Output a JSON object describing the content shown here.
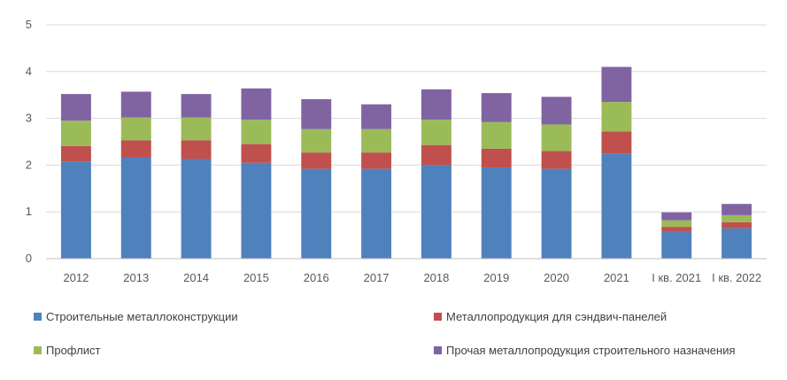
{
  "chart_data": {
    "type": "bar",
    "stacked": true,
    "categories": [
      "2012",
      "2013",
      "2014",
      "2015",
      "2016",
      "2017",
      "2018",
      "2019",
      "2020",
      "2021",
      "I кв. 2021",
      "I кв. 2022"
    ],
    "series": [
      {
        "name": "Строительные металлоконструкции",
        "color": "#4F81BD",
        "values": [
          2.08,
          2.16,
          2.13,
          2.05,
          1.92,
          1.92,
          2.0,
          1.95,
          1.92,
          2.25,
          0.57,
          0.65
        ]
      },
      {
        "name": "Металлопродукция для сэндвич-панелей",
        "color": "#C0504D",
        "values": [
          0.33,
          0.37,
          0.4,
          0.4,
          0.35,
          0.35,
          0.43,
          0.4,
          0.38,
          0.47,
          0.11,
          0.13
        ]
      },
      {
        "name": "Профлист",
        "color": "#9BBB59",
        "values": [
          0.54,
          0.49,
          0.49,
          0.52,
          0.5,
          0.5,
          0.54,
          0.57,
          0.57,
          0.63,
          0.14,
          0.15
        ]
      },
      {
        "name": "Прочая металлопродукция строительного назначения",
        "color": "#8064A2",
        "values": [
          0.57,
          0.55,
          0.5,
          0.67,
          0.64,
          0.53,
          0.65,
          0.62,
          0.59,
          0.75,
          0.17,
          0.24
        ]
      }
    ],
    "title": "",
    "xlabel": "",
    "ylabel": "",
    "ylim": [
      0,
      5
    ],
    "yticks": [
      "0",
      "1",
      "2",
      "3",
      "4",
      "5"
    ],
    "grid": true,
    "legend_position": "bottom"
  }
}
